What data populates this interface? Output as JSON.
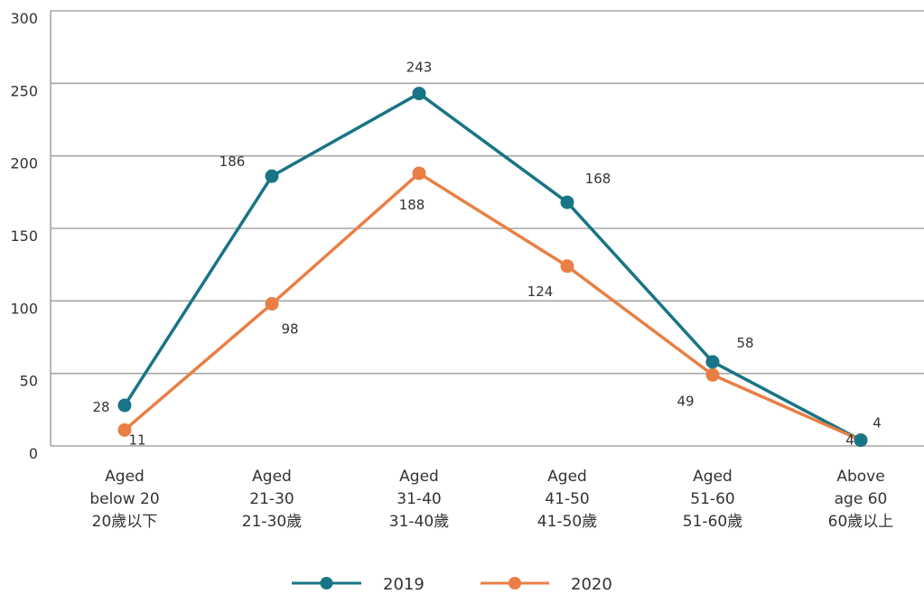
{
  "chart_data": {
    "type": "line",
    "categories": [
      [
        "Aged",
        "below 20",
        "20歲以下"
      ],
      [
        "Aged",
        "21-30",
        "21-30歲"
      ],
      [
        "Aged",
        "31-40",
        "31-40歲"
      ],
      [
        "Aged",
        "41-50",
        "41-50歲"
      ],
      [
        "Aged",
        "51-60",
        "51-60歲"
      ],
      [
        "Above",
        "age 60",
        "60歲以上"
      ]
    ],
    "series": [
      {
        "name": "2019",
        "color": "#187585",
        "values": [
          28,
          186,
          243,
          168,
          58,
          4
        ]
      },
      {
        "name": "2020",
        "color": "#e97f45",
        "values": [
          11,
          98,
          188,
          124,
          49,
          4
        ]
      }
    ],
    "ylim": [
      0,
      300
    ],
    "yticks": [
      0,
      50,
      100,
      150,
      200,
      250,
      300
    ],
    "grid": true,
    "legend": "bottom-center",
    "title": "",
    "xlabel": "",
    "ylabel": ""
  }
}
